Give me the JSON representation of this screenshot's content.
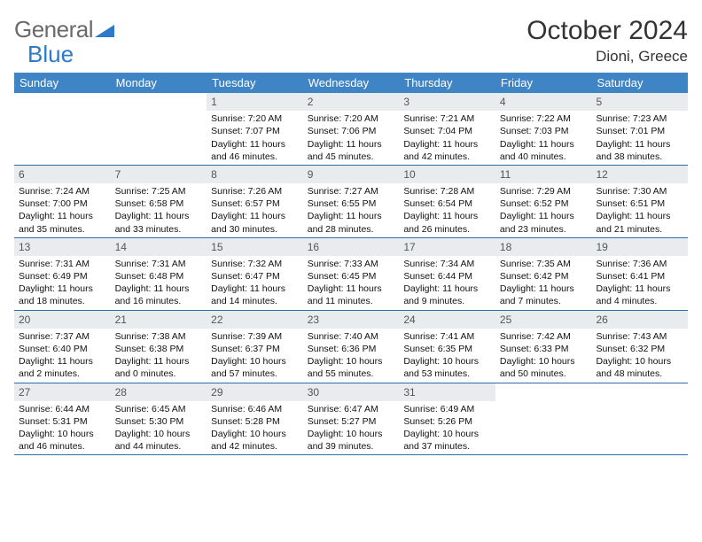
{
  "brand": {
    "part1": "General",
    "part2": "Blue"
  },
  "title": "October 2024",
  "location": "Dioni, Greece",
  "colors": {
    "header_bg": "#3f85c6",
    "header_fg": "#ffffff",
    "daynum_bg": "#e9ecef",
    "week_divider": "#2c6ca8",
    "brand_gray": "#6a6a6a",
    "brand_blue": "#2c7ac9"
  },
  "day_names": [
    "Sunday",
    "Monday",
    "Tuesday",
    "Wednesday",
    "Thursday",
    "Friday",
    "Saturday"
  ],
  "weeks": [
    [
      null,
      null,
      {
        "d": "1",
        "sr": "7:20 AM",
        "ss": "7:07 PM",
        "dl": "11 hours and 46 minutes."
      },
      {
        "d": "2",
        "sr": "7:20 AM",
        "ss": "7:06 PM",
        "dl": "11 hours and 45 minutes."
      },
      {
        "d": "3",
        "sr": "7:21 AM",
        "ss": "7:04 PM",
        "dl": "11 hours and 42 minutes."
      },
      {
        "d": "4",
        "sr": "7:22 AM",
        "ss": "7:03 PM",
        "dl": "11 hours and 40 minutes."
      },
      {
        "d": "5",
        "sr": "7:23 AM",
        "ss": "7:01 PM",
        "dl": "11 hours and 38 minutes."
      }
    ],
    [
      {
        "d": "6",
        "sr": "7:24 AM",
        "ss": "7:00 PM",
        "dl": "11 hours and 35 minutes."
      },
      {
        "d": "7",
        "sr": "7:25 AM",
        "ss": "6:58 PM",
        "dl": "11 hours and 33 minutes."
      },
      {
        "d": "8",
        "sr": "7:26 AM",
        "ss": "6:57 PM",
        "dl": "11 hours and 30 minutes."
      },
      {
        "d": "9",
        "sr": "7:27 AM",
        "ss": "6:55 PM",
        "dl": "11 hours and 28 minutes."
      },
      {
        "d": "10",
        "sr": "7:28 AM",
        "ss": "6:54 PM",
        "dl": "11 hours and 26 minutes."
      },
      {
        "d": "11",
        "sr": "7:29 AM",
        "ss": "6:52 PM",
        "dl": "11 hours and 23 minutes."
      },
      {
        "d": "12",
        "sr": "7:30 AM",
        "ss": "6:51 PM",
        "dl": "11 hours and 21 minutes."
      }
    ],
    [
      {
        "d": "13",
        "sr": "7:31 AM",
        "ss": "6:49 PM",
        "dl": "11 hours and 18 minutes."
      },
      {
        "d": "14",
        "sr": "7:31 AM",
        "ss": "6:48 PM",
        "dl": "11 hours and 16 minutes."
      },
      {
        "d": "15",
        "sr": "7:32 AM",
        "ss": "6:47 PM",
        "dl": "11 hours and 14 minutes."
      },
      {
        "d": "16",
        "sr": "7:33 AM",
        "ss": "6:45 PM",
        "dl": "11 hours and 11 minutes."
      },
      {
        "d": "17",
        "sr": "7:34 AM",
        "ss": "6:44 PM",
        "dl": "11 hours and 9 minutes."
      },
      {
        "d": "18",
        "sr": "7:35 AM",
        "ss": "6:42 PM",
        "dl": "11 hours and 7 minutes."
      },
      {
        "d": "19",
        "sr": "7:36 AM",
        "ss": "6:41 PM",
        "dl": "11 hours and 4 minutes."
      }
    ],
    [
      {
        "d": "20",
        "sr": "7:37 AM",
        "ss": "6:40 PM",
        "dl": "11 hours and 2 minutes."
      },
      {
        "d": "21",
        "sr": "7:38 AM",
        "ss": "6:38 PM",
        "dl": "11 hours and 0 minutes."
      },
      {
        "d": "22",
        "sr": "7:39 AM",
        "ss": "6:37 PM",
        "dl": "10 hours and 57 minutes."
      },
      {
        "d": "23",
        "sr": "7:40 AM",
        "ss": "6:36 PM",
        "dl": "10 hours and 55 minutes."
      },
      {
        "d": "24",
        "sr": "7:41 AM",
        "ss": "6:35 PM",
        "dl": "10 hours and 53 minutes."
      },
      {
        "d": "25",
        "sr": "7:42 AM",
        "ss": "6:33 PM",
        "dl": "10 hours and 50 minutes."
      },
      {
        "d": "26",
        "sr": "7:43 AM",
        "ss": "6:32 PM",
        "dl": "10 hours and 48 minutes."
      }
    ],
    [
      {
        "d": "27",
        "sr": "6:44 AM",
        "ss": "5:31 PM",
        "dl": "10 hours and 46 minutes."
      },
      {
        "d": "28",
        "sr": "6:45 AM",
        "ss": "5:30 PM",
        "dl": "10 hours and 44 minutes."
      },
      {
        "d": "29",
        "sr": "6:46 AM",
        "ss": "5:28 PM",
        "dl": "10 hours and 42 minutes."
      },
      {
        "d": "30",
        "sr": "6:47 AM",
        "ss": "5:27 PM",
        "dl": "10 hours and 39 minutes."
      },
      {
        "d": "31",
        "sr": "6:49 AM",
        "ss": "5:26 PM",
        "dl": "10 hours and 37 minutes."
      },
      null,
      null
    ]
  ],
  "labels": {
    "sunrise": "Sunrise: ",
    "sunset": "Sunset: ",
    "daylight": "Daylight: "
  }
}
